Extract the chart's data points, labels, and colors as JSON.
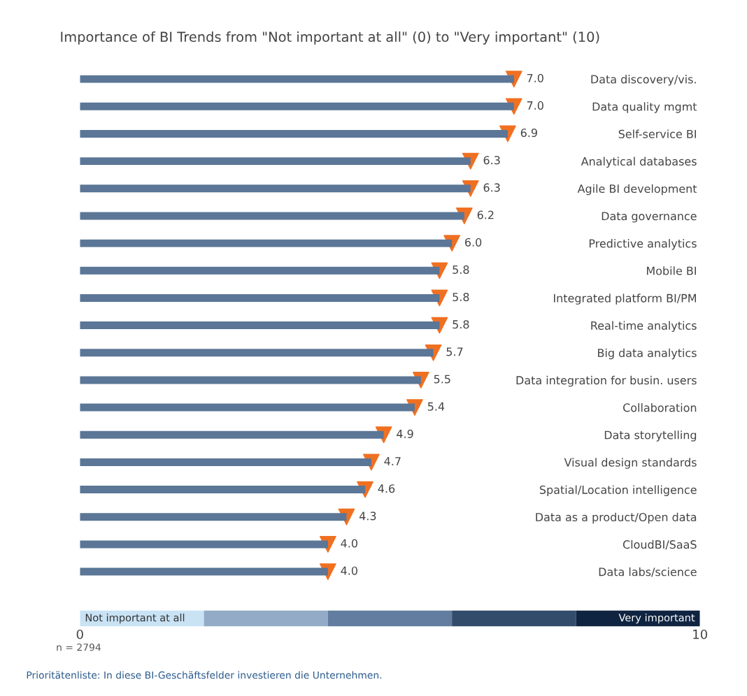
{
  "chart_data": {
    "type": "bar",
    "orientation": "horizontal",
    "title": "Importance of BI Trends from \"Not important at all\" (0) to \"Very important\" (10)",
    "categories": [
      "Data discovery/vis.",
      "Data quality mgmt",
      "Self-service BI",
      "Analytical databases",
      "Agile BI development",
      "Data governance",
      "Predictive analytics",
      "Mobile BI",
      "Integrated platform BI/PM",
      "Real-time analytics",
      "Big data analytics",
      "Data integration for busin. users",
      "Collaboration",
      "Data storytelling",
      "Visual design standards",
      "Spatial/Location intelligence",
      "Data as a product/Open data",
      "CloudBI/SaaS",
      "Data labs/science"
    ],
    "series": [
      {
        "type": "bar",
        "color": "#5b7696",
        "values": [
          7.0,
          7.0,
          6.9,
          6.3,
          6.3,
          6.2,
          6.0,
          5.8,
          5.8,
          5.8,
          5.7,
          5.5,
          5.4,
          4.9,
          4.7,
          4.6,
          4.3,
          4.0,
          4.0
        ]
      },
      {
        "type": "scatter",
        "marker": "triangle",
        "color": "#f07022",
        "values": [
          7.0,
          7.0,
          6.9,
          6.3,
          6.3,
          6.2,
          6.0,
          5.8,
          5.8,
          5.8,
          5.7,
          5.5,
          5.4,
          4.9,
          4.7,
          4.6,
          4.3,
          4.0,
          4.0
        ],
        "value_labels": [
          "7.0",
          "7.0",
          "6.9",
          "6.3",
          "6.3",
          "6.2",
          "6.0",
          "5.8",
          "5.8",
          "5.8",
          "5.7",
          "5.5",
          "5.4",
          "4.9",
          "4.7",
          "4.6",
          "4.3",
          "4.0",
          "4.0"
        ]
      }
    ],
    "xlim": [
      0,
      10
    ],
    "xticks": [
      0,
      10
    ],
    "annotations": [
      "Not important at all",
      "Very important",
      "n = 2794",
      "Prioritätenliste: In diese BI-Geschäftsfelder investieren die Unternehmen."
    ]
  }
}
